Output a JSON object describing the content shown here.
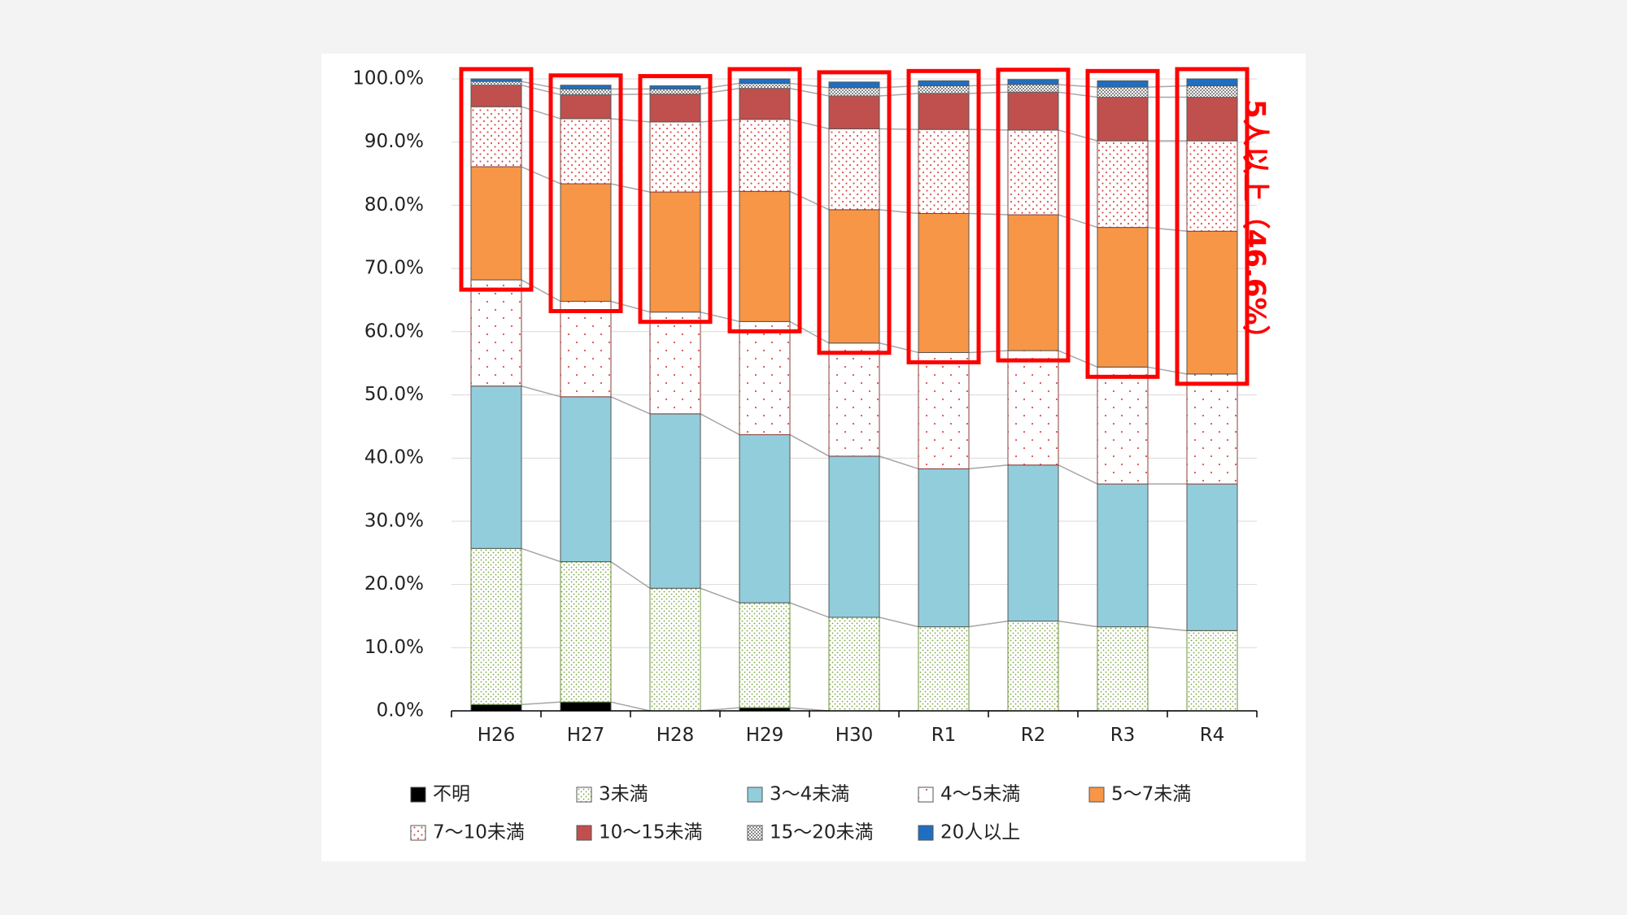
{
  "chart_data": {
    "type": "bar",
    "stacked": true,
    "percent": true,
    "categories": [
      "H26",
      "H27",
      "H28",
      "H29",
      "H30",
      "R1",
      "R2",
      "R3",
      "R4"
    ],
    "ylim": [
      0,
      100
    ],
    "y_ticks": [
      "0.0%",
      "10.0%",
      "20.0%",
      "30.0%",
      "40.0%",
      "50.0%",
      "60.0%",
      "70.0%",
      "80.0%",
      "90.0%",
      "100.0%"
    ],
    "grid": true,
    "series_lines": true,
    "legend_position": "bottom",
    "series": [
      {
        "name": "不明",
        "color": "#000000",
        "pattern": "solid",
        "values": [
          1.0,
          1.4,
          0.0,
          0.5,
          0.0,
          0.0,
          0.0,
          0.0,
          0.0
        ]
      },
      {
        "name": "3未満",
        "color": "#ffffff",
        "pattern": "green-dots",
        "values": [
          24.7,
          22.2,
          19.4,
          16.6,
          14.8,
          13.3,
          14.2,
          13.3,
          12.7
        ]
      },
      {
        "name": "3～4未満",
        "color": "#92cddc",
        "pattern": "solid",
        "values": [
          25.7,
          26.1,
          27.6,
          26.6,
          25.5,
          25.0,
          24.7,
          22.6,
          23.2
        ]
      },
      {
        "name": "4～5未満",
        "color": "#ffffff",
        "pattern": "red-sparse",
        "values": [
          16.8,
          15.1,
          16.1,
          17.9,
          17.9,
          18.4,
          18.1,
          18.5,
          17.4
        ]
      },
      {
        "name": "5～7未満",
        "color": "#f79646",
        "pattern": "solid",
        "values": [
          17.9,
          18.6,
          19.0,
          20.6,
          21.1,
          22.0,
          21.5,
          22.1,
          22.6
        ]
      },
      {
        "name": "7～10未満",
        "color": "#ffffff",
        "pattern": "red-dense",
        "values": [
          9.5,
          10.3,
          11.1,
          11.4,
          12.8,
          13.3,
          13.4,
          13.7,
          14.3
        ]
      },
      {
        "name": "10～15未満",
        "color": "#c0504d",
        "pattern": "solid",
        "values": [
          3.4,
          3.8,
          4.4,
          4.9,
          5.2,
          5.7,
          6.0,
          6.9,
          6.9
        ]
      },
      {
        "name": "15～20未満",
        "color": "#ffffff",
        "pattern": "gray-check",
        "values": [
          0.6,
          0.9,
          0.8,
          0.8,
          1.3,
          1.2,
          1.2,
          1.6,
          1.8
        ]
      },
      {
        "name": "20人以上",
        "color": "#1f6fc1",
        "pattern": "solid",
        "values": [
          0.4,
          0.6,
          0.5,
          0.7,
          0.9,
          0.8,
          0.8,
          1.0,
          1.1
        ]
      }
    ],
    "highlight": {
      "from_series_index": 4,
      "color": "#ff0000",
      "label": "5人以上（46.6%）"
    }
  }
}
